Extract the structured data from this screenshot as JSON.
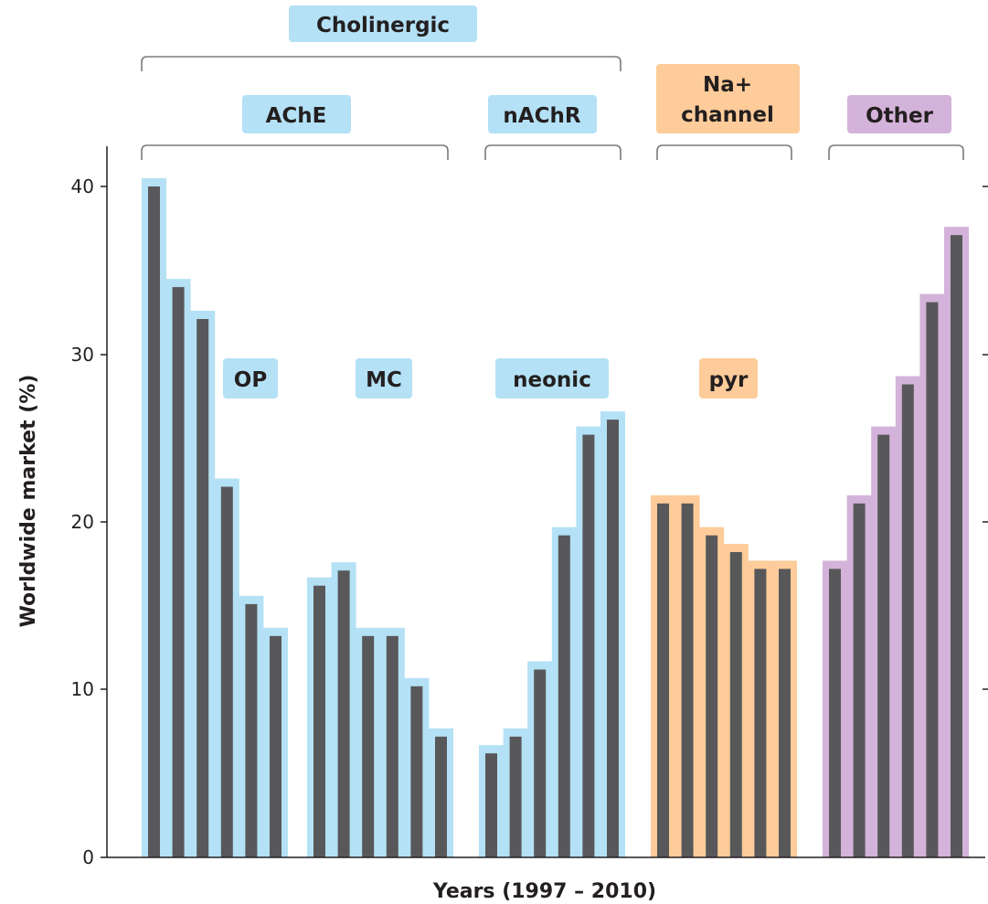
{
  "chart_data": {
    "type": "bar",
    "title": "",
    "xlabel": "Years (1997 – 2010)",
    "ylabel": "Worldwide market (%)",
    "ylim": [
      0,
      42
    ],
    "yticks": [
      0,
      10,
      20,
      30,
      40
    ],
    "grid": false,
    "legend": "none",
    "colors": {
      "bar_fill": "#58585a",
      "cholinergic_halo": "#b4e1f5",
      "cholinergic_label_bg": "#b4e1f5",
      "na_channel_halo": "#fdcc9a",
      "na_channel_label_bg": "#fdcc9a",
      "other_halo": "#d4b3da",
      "other_label_bg": "#d4b3da"
    },
    "group_labels": {
      "cholinergic": "Cholinergic",
      "ache": "AChE",
      "nachr": "nAChR",
      "na_channel": [
        "Na+",
        "channel"
      ],
      "other": "Other",
      "op": "OP",
      "mc": "MC",
      "neonic": "neonic",
      "pyr": "pyr"
    },
    "series": [
      {
        "name": "OP",
        "class": "Cholinergic / AChE",
        "values": [
          40,
          34,
          32.1,
          22.1,
          15.1,
          13.2
        ]
      },
      {
        "name": "MC",
        "class": "Cholinergic / AChE",
        "values": [
          16.2,
          17.1,
          13.2,
          13.2,
          10.2,
          7.2
        ]
      },
      {
        "name": "neonic",
        "class": "Cholinergic / nAChR",
        "values": [
          6.2,
          7.2,
          11.2,
          19.2,
          25.2,
          26.1
        ]
      },
      {
        "name": "pyr",
        "class": "Na+ channel",
        "values": [
          21.1,
          21.1,
          19.2,
          18.2,
          17.2,
          17.2
        ]
      },
      {
        "name": "Other",
        "class": "Other",
        "values": [
          17.2,
          21.1,
          25.2,
          28.2,
          33.1,
          37.1
        ]
      }
    ]
  }
}
